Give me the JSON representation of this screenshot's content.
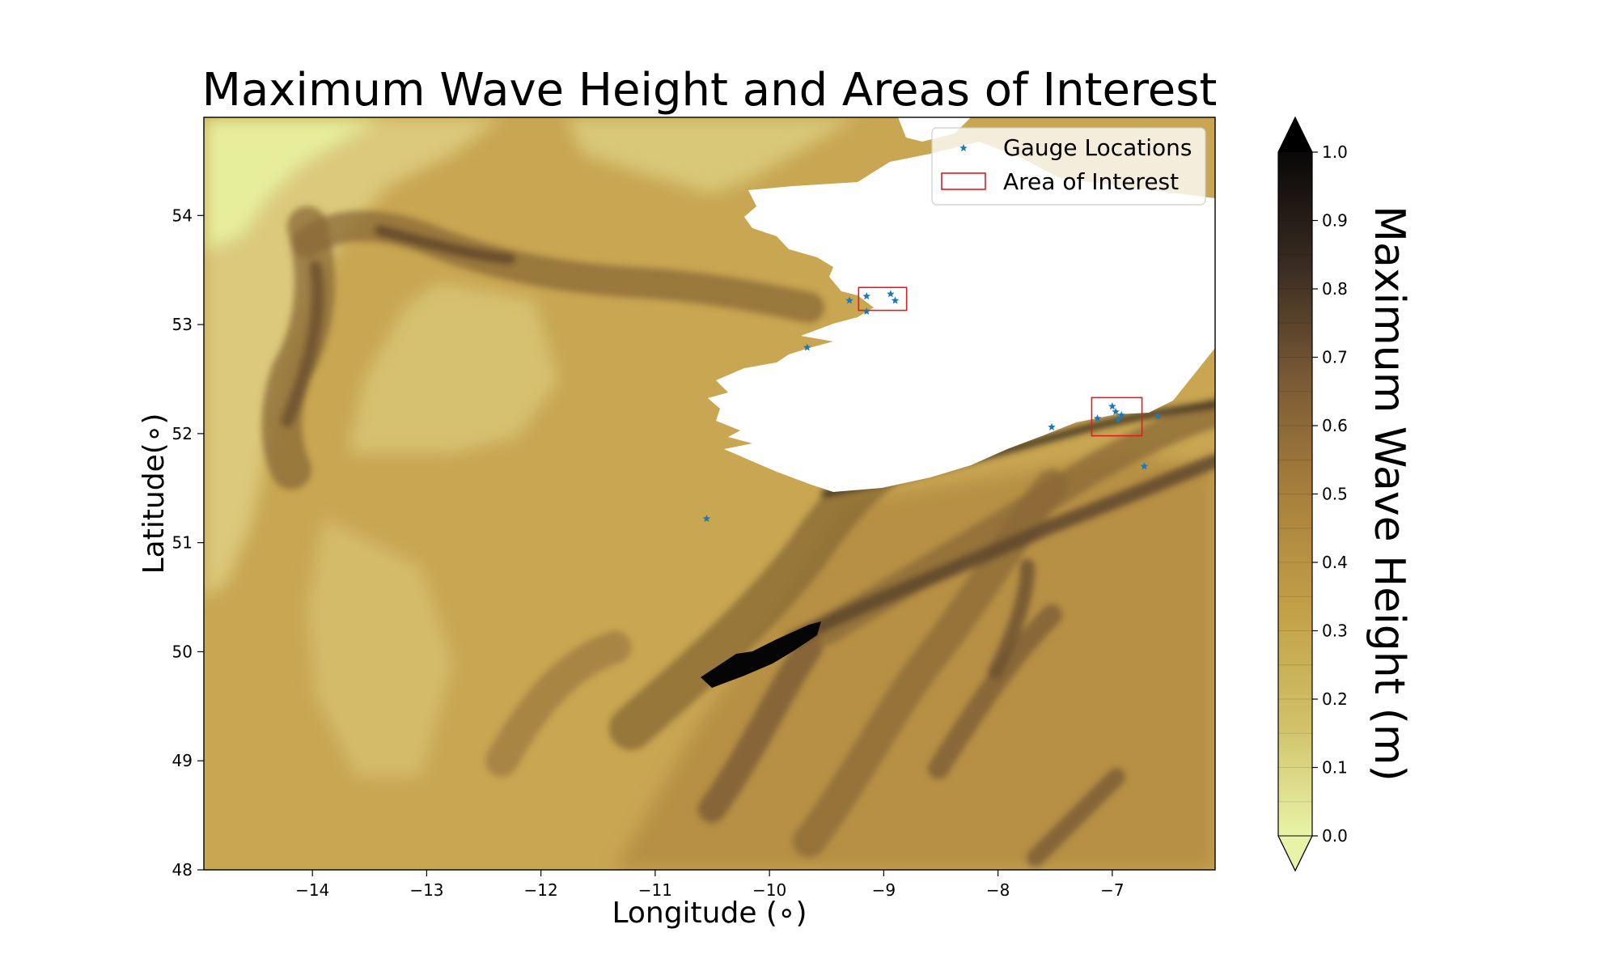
{
  "chart_data": {
    "type": "heatmap",
    "title": "Maximum Wave Height and Areas of Interest",
    "xlabel": "Longitude (∘)",
    "ylabel": "Latitude(∘)",
    "xlim": [
      -14.95,
      -6.1
    ],
    "ylim": [
      48.0,
      54.9
    ],
    "xticks": [
      "−14",
      "−13",
      "−12",
      "−11",
      "−10",
      "−9",
      "−8",
      "−7"
    ],
    "xtick_values": [
      -14,
      -13,
      -12,
      -11,
      -10,
      -9,
      -8,
      -7
    ],
    "yticks": [
      "48",
      "49",
      "50",
      "51",
      "52",
      "53",
      "54"
    ],
    "ytick_values": [
      48,
      49,
      50,
      51,
      52,
      53,
      54
    ],
    "colorbar": {
      "label": "Maximum Wave Height (m)",
      "range": [
        0.0,
        1.0
      ],
      "levels": 20,
      "extend": "both",
      "ticks": [
        "0.0",
        "0.1",
        "0.2",
        "0.3",
        "0.4",
        "0.5",
        "0.6",
        "0.7",
        "0.8",
        "0.9",
        "1.0"
      ],
      "tick_values": [
        0.0,
        0.1,
        0.2,
        0.3,
        0.4,
        0.5,
        0.6,
        0.7,
        0.8,
        0.9,
        1.0
      ],
      "colormap": [
        "#e8f3a7",
        "#d0c067",
        "#c2a047",
        "#a87f3c",
        "#7a5a35",
        "#3a2c22",
        "#080808"
      ]
    },
    "legend": {
      "placement": "top-right",
      "items": [
        {
          "label": "Gauge Locations",
          "marker": "star",
          "color": "#1f77b4"
        },
        {
          "label": "Area of Interest",
          "marker": "rect",
          "color": "#e31a1c"
        }
      ]
    },
    "gauges": [
      {
        "lon": -10.55,
        "lat": 51.22
      },
      {
        "lon": -9.67,
        "lat": 52.79
      },
      {
        "lon": -9.3,
        "lat": 53.22
      },
      {
        "lon": -9.15,
        "lat": 53.26
      },
      {
        "lon": -9.15,
        "lat": 53.12
      },
      {
        "lon": -8.94,
        "lat": 53.28
      },
      {
        "lon": -8.9,
        "lat": 53.22
      },
      {
        "lon": -7.53,
        "lat": 52.06
      },
      {
        "lon": -7.13,
        "lat": 52.14
      },
      {
        "lon": -7.0,
        "lat": 52.25
      },
      {
        "lon": -6.97,
        "lat": 52.2
      },
      {
        "lon": -6.95,
        "lat": 52.13
      },
      {
        "lon": -6.92,
        "lat": 52.17
      },
      {
        "lon": -6.6,
        "lat": 52.16
      },
      {
        "lon": -6.72,
        "lat": 51.7
      }
    ],
    "areas_of_interest": [
      {
        "lon_min": -9.22,
        "lon_max": -8.8,
        "lat_min": 53.13,
        "lat_max": 53.34
      },
      {
        "lon_min": -7.18,
        "lon_max": -6.74,
        "lat_min": 51.98,
        "lat_max": 52.33
      }
    ]
  }
}
